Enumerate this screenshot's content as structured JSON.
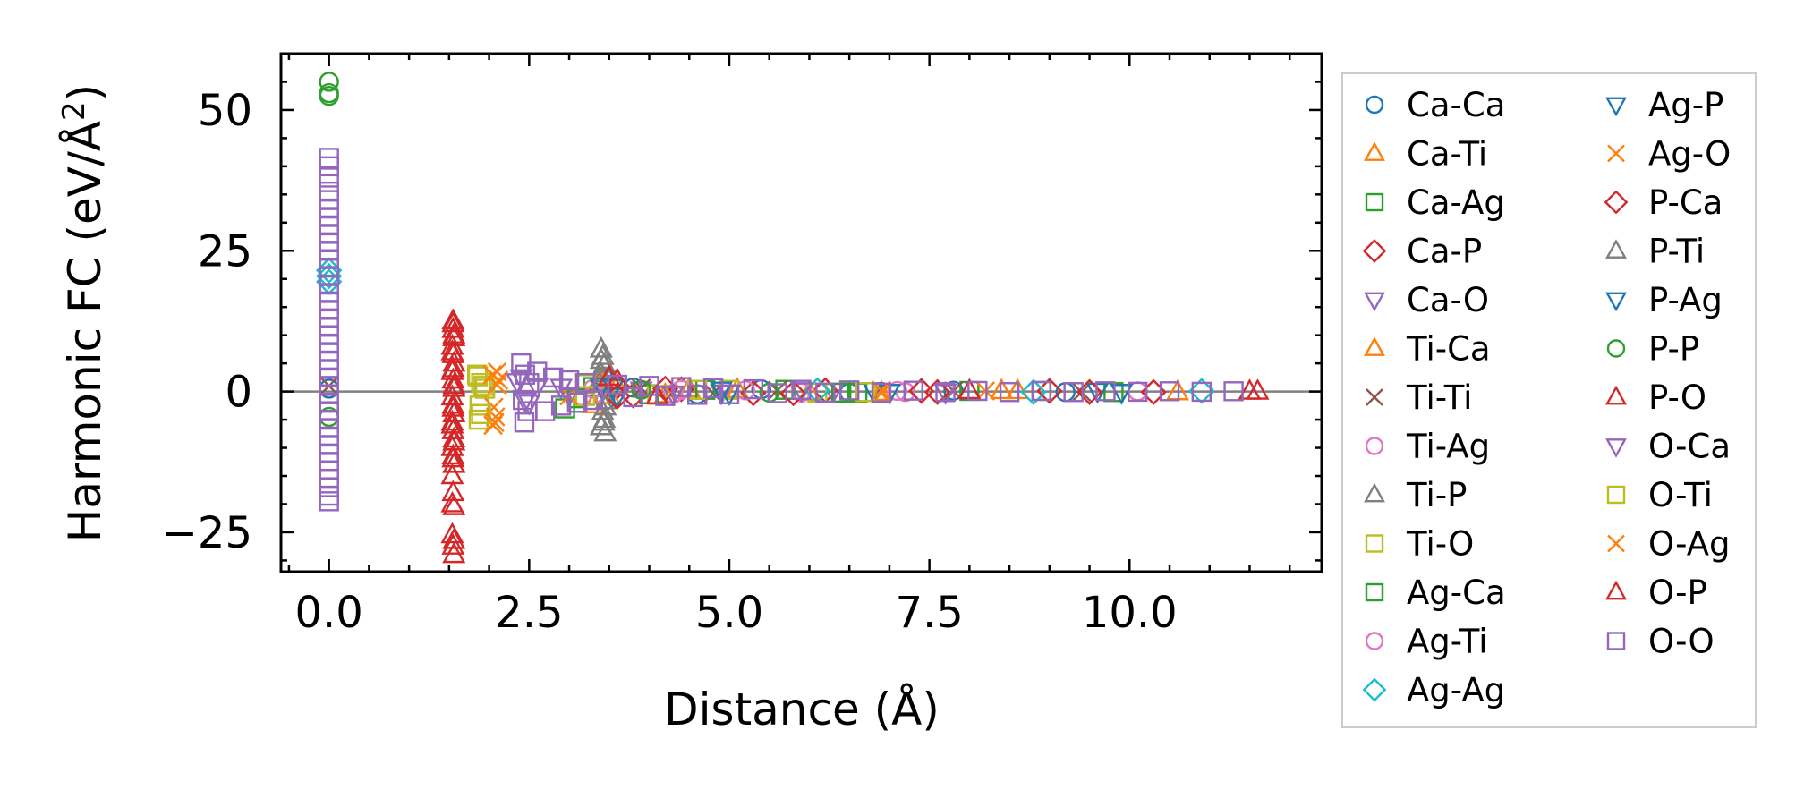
{
  "chart_data": {
    "type": "scatter",
    "title": "",
    "xlabel": "Distance (Å)",
    "ylabel_main": "Harmonic FC (eV/Å",
    "ylabel_sup": "2",
    "ylabel_end": ")",
    "xlim": [
      -0.6,
      12.4
    ],
    "ylim": [
      -32,
      60
    ],
    "xticks": [
      0.0,
      2.5,
      5.0,
      7.5,
      10.0
    ],
    "xtick_labels": [
      "0.0",
      "2.5",
      "5.0",
      "7.5",
      "10.0"
    ],
    "yticks": [
      -25,
      0,
      25,
      50
    ],
    "ytick_labels": [
      "−25",
      "0",
      "25",
      "50"
    ],
    "zero_line": 0,
    "legend_position": "outside-right",
    "series": [
      {
        "name": "Ca-Ca",
        "marker": "circle",
        "color": "#1f77b4",
        "points": [
          [
            0.0,
            0.5
          ],
          [
            3.42,
            2.6
          ],
          [
            3.45,
            -1.6
          ],
          [
            3.8,
            0.7
          ],
          [
            4.6,
            -0.5
          ],
          [
            5.4,
            0.4
          ],
          [
            6.5,
            -0.2
          ],
          [
            7.8,
            0.15
          ],
          [
            9.2,
            -0.1
          ]
        ]
      },
      {
        "name": "Ca-Ti",
        "marker": "triangle-up",
        "color": "#ff7f0e",
        "points": [
          [
            3.3,
            -2.4
          ],
          [
            3.4,
            1.8
          ],
          [
            3.6,
            0.9
          ],
          [
            4.2,
            -0.6
          ],
          [
            5.1,
            0.3
          ],
          [
            6.9,
            -0.2
          ],
          [
            8.4,
            0.1
          ],
          [
            10.6,
            -0.1
          ]
        ]
      },
      {
        "name": "Ca-Ag",
        "marker": "square",
        "color": "#2ca02c",
        "points": [
          [
            3.1,
            -2.0
          ],
          [
            3.3,
            0.8
          ],
          [
            4.0,
            -0.5
          ],
          [
            5.7,
            0.3
          ],
          [
            6.6,
            -0.2
          ],
          [
            8.0,
            0.1
          ],
          [
            9.8,
            -0.1
          ]
        ]
      },
      {
        "name": "Ca-P",
        "marker": "diamond",
        "color": "#d62728",
        "points": [
          [
            3.6,
            0.9
          ],
          [
            3.8,
            -0.7
          ],
          [
            4.4,
            0.4
          ],
          [
            5.3,
            -0.3
          ],
          [
            6.2,
            0.2
          ],
          [
            7.6,
            -0.1
          ],
          [
            9.0,
            0.1
          ],
          [
            10.3,
            -0.1
          ]
        ]
      },
      {
        "name": "Ca-O",
        "marker": "triangle-down",
        "color": "#9467bd",
        "points": [
          [
            2.35,
            1.8
          ],
          [
            2.45,
            -1.6
          ],
          [
            2.6,
            0.9
          ],
          [
            3.0,
            -0.6
          ],
          [
            3.9,
            0.3
          ],
          [
            4.9,
            -0.2
          ],
          [
            6.3,
            0.1
          ]
        ]
      },
      {
        "name": "Ti-Ca",
        "marker": "triangle-up",
        "color": "#ff7f0e",
        "points": [
          [
            3.35,
            1.2
          ],
          [
            3.5,
            -0.8
          ],
          [
            4.5,
            0.4
          ],
          [
            6.0,
            -0.2
          ],
          [
            8.6,
            0.1
          ]
        ]
      },
      {
        "name": "Ti-Ti",
        "marker": "x",
        "color": "#8c564b",
        "points": [
          [
            0.0,
            1.0
          ],
          [
            3.9,
            0.6
          ],
          [
            4.8,
            -0.3
          ],
          [
            5.6,
            0.2
          ],
          [
            7.8,
            0.1
          ],
          [
            9.4,
            -0.1
          ]
        ]
      },
      {
        "name": "Ti-Ag",
        "marker": "circle",
        "color": "#e377c2",
        "points": [
          [
            3.3,
            0.5
          ],
          [
            4.3,
            -0.4
          ],
          [
            5.2,
            0.2
          ],
          [
            7.2,
            -0.1
          ],
          [
            10.1,
            0.05
          ]
        ]
      },
      {
        "name": "Ti-P",
        "marker": "triangle-up",
        "color": "#7f7f7f",
        "points": [
          [
            3.4,
            7.5
          ],
          [
            3.42,
            6.2
          ],
          [
            3.44,
            4.8
          ],
          [
            3.4,
            3.1
          ],
          [
            3.42,
            -3.6
          ],
          [
            3.44,
            -5.0
          ],
          [
            3.4,
            -6.3
          ],
          [
            3.45,
            -7.4
          ],
          [
            3.38,
            1.5
          ],
          [
            3.46,
            -1.7
          ]
        ]
      },
      {
        "name": "Ti-O",
        "marker": "square",
        "color": "#bcbd22",
        "points": [
          [
            1.85,
            3.0
          ],
          [
            1.87,
            -5.0
          ],
          [
            1.9,
            1.5
          ],
          [
            1.88,
            -2.5
          ],
          [
            1.95,
            0.5
          ],
          [
            3.2,
            1.3
          ],
          [
            4.1,
            -0.6
          ],
          [
            5.0,
            0.3
          ],
          [
            6.1,
            -0.2
          ]
        ]
      },
      {
        "name": "Ag-Ca",
        "marker": "square",
        "color": "#2ca02c",
        "points": [
          [
            2.95,
            -3.0
          ],
          [
            3.1,
            -1.2
          ],
          [
            4.7,
            0.3
          ],
          [
            6.4,
            -0.2
          ],
          [
            8.9,
            0.1
          ]
        ]
      },
      {
        "name": "Ag-Ti",
        "marker": "circle",
        "color": "#e377c2",
        "points": [
          [
            3.3,
            -0.6
          ],
          [
            4.4,
            0.3
          ],
          [
            5.9,
            -0.2
          ],
          [
            7.1,
            0.1
          ]
        ]
      },
      {
        "name": "Ag-Ag",
        "marker": "diamond",
        "color": "#17becf",
        "points": [
          [
            0.0,
            20.5
          ],
          [
            0.0,
            19.5
          ],
          [
            0.0,
            21.5
          ],
          [
            6.1,
            0.2
          ],
          [
            8.8,
            -0.1
          ],
          [
            10.9,
            0.1
          ]
        ]
      },
      {
        "name": "Ag-P",
        "marker": "triangle-down",
        "color": "#1f77b4",
        "points": [
          [
            3.4,
            1.0
          ],
          [
            3.6,
            -0.8
          ],
          [
            4.9,
            0.3
          ],
          [
            7.0,
            -0.1
          ],
          [
            9.6,
            0.1
          ]
        ]
      },
      {
        "name": "Ag-O",
        "marker": "x",
        "color": "#ff7f0e",
        "points": [
          [
            2.05,
            -6.0
          ],
          [
            2.08,
            -4.5
          ],
          [
            2.1,
            3.5
          ],
          [
            2.12,
            2.0
          ],
          [
            2.06,
            -2.8
          ],
          [
            6.9,
            -0.3
          ],
          [
            8.2,
            0.1
          ]
        ]
      },
      {
        "name": "P-Ca",
        "marker": "diamond",
        "color": "#d62728",
        "points": [
          [
            3.6,
            -0.9
          ],
          [
            4.2,
            0.5
          ],
          [
            5.8,
            -0.3
          ],
          [
            7.4,
            0.1
          ],
          [
            9.5,
            -0.1
          ]
        ]
      },
      {
        "name": "P-Ti",
        "marker": "triangle-up",
        "color": "#7f7f7f",
        "points": [
          [
            3.4,
            5.5
          ],
          [
            3.43,
            -5.5
          ],
          [
            3.41,
            2.3
          ],
          [
            3.45,
            -2.8
          ]
        ]
      },
      {
        "name": "P-Ag",
        "marker": "triangle-down",
        "color": "#1f77b4",
        "points": [
          [
            3.55,
            0.8
          ],
          [
            5.0,
            -0.3
          ],
          [
            6.8,
            0.2
          ],
          [
            9.9,
            -0.1
          ]
        ]
      },
      {
        "name": "P-P",
        "marker": "circle",
        "color": "#2ca02c",
        "points": [
          [
            0.0,
            55.0
          ],
          [
            0.0,
            53.0
          ],
          [
            0.0,
            52.5
          ],
          [
            0.0,
            -4.5
          ],
          [
            3.9,
            0.3
          ],
          [
            5.5,
            -0.2
          ]
        ]
      },
      {
        "name": "P-O",
        "marker": "triangle-up",
        "color": "#d62728",
        "points": [
          [
            1.55,
            12.5
          ],
          [
            1.55,
            11.0
          ],
          [
            1.56,
            9.5
          ],
          [
            1.54,
            8.0
          ],
          [
            1.55,
            6.5
          ],
          [
            1.56,
            5.0
          ],
          [
            1.54,
            3.5
          ],
          [
            1.55,
            2.0
          ],
          [
            1.56,
            0.5
          ],
          [
            1.54,
            -1.0
          ],
          [
            1.55,
            -2.5
          ],
          [
            1.56,
            -4.0
          ],
          [
            1.54,
            -5.5
          ],
          [
            1.55,
            -7.0
          ],
          [
            1.56,
            -8.5
          ],
          [
            1.54,
            -10.0
          ],
          [
            1.55,
            -11.5
          ],
          [
            1.56,
            -13.0
          ],
          [
            1.54,
            -15.0
          ],
          [
            1.55,
            -18.0
          ],
          [
            1.56,
            -20.5
          ],
          [
            1.54,
            -25.5
          ],
          [
            1.55,
            -27.5
          ],
          [
            1.56,
            -29.0
          ],
          [
            3.5,
            2.5
          ],
          [
            4.1,
            -0.8
          ],
          [
            8.0,
            0.1
          ],
          [
            11.6,
            0.0
          ]
        ]
      },
      {
        "name": "O-Ca",
        "marker": "triangle-down",
        "color": "#9467bd",
        "points": [
          [
            2.4,
            2.5
          ],
          [
            2.5,
            -2.0
          ],
          [
            2.9,
            0.8
          ],
          [
            4.3,
            -0.4
          ],
          [
            5.9,
            0.2
          ],
          [
            7.7,
            -0.1
          ]
        ]
      },
      {
        "name": "O-Ti",
        "marker": "square",
        "color": "#bcbd22",
        "points": [
          [
            1.86,
            2.7
          ],
          [
            1.9,
            -4.0
          ],
          [
            1.93,
            1.0
          ],
          [
            3.2,
            -0.8
          ],
          [
            4.6,
            0.3
          ],
          [
            6.7,
            -0.1
          ]
        ]
      },
      {
        "name": "O-Ag",
        "marker": "x",
        "color": "#ff7f0e",
        "points": [
          [
            2.04,
            3.0
          ],
          [
            2.07,
            -5.5
          ],
          [
            2.1,
            1.2
          ],
          [
            3.0,
            -0.8
          ],
          [
            6.9,
            0.2
          ]
        ]
      },
      {
        "name": "O-P",
        "marker": "triangle-up",
        "color": "#d62728",
        "points": [
          [
            1.55,
            12.0
          ],
          [
            1.56,
            10.0
          ],
          [
            1.54,
            7.0
          ],
          [
            1.55,
            4.0
          ],
          [
            1.56,
            1.0
          ],
          [
            1.55,
            -3.0
          ],
          [
            1.54,
            -6.0
          ],
          [
            1.56,
            -9.0
          ],
          [
            1.55,
            -12.0
          ],
          [
            1.54,
            -20.0
          ],
          [
            1.56,
            -26.5
          ],
          [
            3.6,
            2.0
          ],
          [
            11.5,
            0.0
          ]
        ]
      },
      {
        "name": "O-O",
        "marker": "square",
        "color": "#9467bd",
        "points": [
          [
            0.0,
            41.5
          ],
          [
            0.0,
            40.0
          ],
          [
            0.0,
            38.0
          ],
          [
            0.0,
            35.5
          ],
          [
            0.0,
            34.0
          ],
          [
            0.0,
            32.5
          ],
          [
            0.0,
            31.0
          ],
          [
            0.0,
            29.5
          ],
          [
            0.0,
            28.0
          ],
          [
            0.0,
            26.5
          ],
          [
            0.0,
            25.0
          ],
          [
            0.0,
            23.5
          ],
          [
            0.0,
            22.0
          ],
          [
            0.0,
            20.5
          ],
          [
            0.0,
            19.0
          ],
          [
            0.0,
            17.5
          ],
          [
            0.0,
            16.0
          ],
          [
            0.0,
            14.5
          ],
          [
            0.0,
            13.0
          ],
          [
            0.0,
            11.5
          ],
          [
            0.0,
            10.0
          ],
          [
            0.0,
            8.5
          ],
          [
            0.0,
            7.0
          ],
          [
            0.0,
            5.5
          ],
          [
            0.0,
            4.0
          ],
          [
            0.0,
            2.5
          ],
          [
            0.0,
            1.0
          ],
          [
            0.0,
            -0.5
          ],
          [
            0.0,
            -2.0
          ],
          [
            0.0,
            -3.5
          ],
          [
            0.0,
            -5.0
          ],
          [
            0.0,
            -6.5
          ],
          [
            0.0,
            -8.0
          ],
          [
            0.0,
            -9.5
          ],
          [
            0.0,
            -11.0
          ],
          [
            0.0,
            -12.5
          ],
          [
            0.0,
            -14.0
          ],
          [
            0.0,
            -15.5
          ],
          [
            0.0,
            -17.0
          ],
          [
            0.0,
            -18.5
          ],
          [
            0.0,
            -19.5
          ],
          [
            2.4,
            5.0
          ],
          [
            2.45,
            3.0
          ],
          [
            2.5,
            1.5
          ],
          [
            2.42,
            -1.5
          ],
          [
            2.48,
            -3.5
          ],
          [
            2.44,
            -5.5
          ],
          [
            2.6,
            3.5
          ],
          [
            2.7,
            -3.5
          ],
          [
            2.8,
            2.5
          ],
          [
            2.9,
            -2.5
          ],
          [
            3.0,
            2.0
          ],
          [
            3.1,
            -2.0
          ],
          [
            3.2,
            1.5
          ],
          [
            3.3,
            -1.5
          ],
          [
            3.6,
            1.2
          ],
          [
            3.8,
            -1.0
          ],
          [
            4.0,
            1.0
          ],
          [
            4.2,
            -0.8
          ],
          [
            4.4,
            0.8
          ],
          [
            4.6,
            -0.6
          ],
          [
            4.8,
            0.6
          ],
          [
            5.0,
            -0.5
          ],
          [
            5.3,
            0.4
          ],
          [
            5.6,
            -0.3
          ],
          [
            5.9,
            0.3
          ],
          [
            6.2,
            -0.2
          ],
          [
            6.5,
            0.2
          ],
          [
            6.9,
            -0.2
          ],
          [
            7.3,
            0.15
          ],
          [
            7.7,
            -0.1
          ],
          [
            8.1,
            0.1
          ],
          [
            8.5,
            -0.1
          ],
          [
            8.9,
            0.1
          ],
          [
            9.3,
            -0.1
          ],
          [
            9.7,
            0.05
          ],
          [
            10.1,
            -0.05
          ],
          [
            10.5,
            0.05
          ],
          [
            10.9,
            -0.05
          ],
          [
            11.3,
            0.05
          ]
        ]
      }
    ]
  }
}
